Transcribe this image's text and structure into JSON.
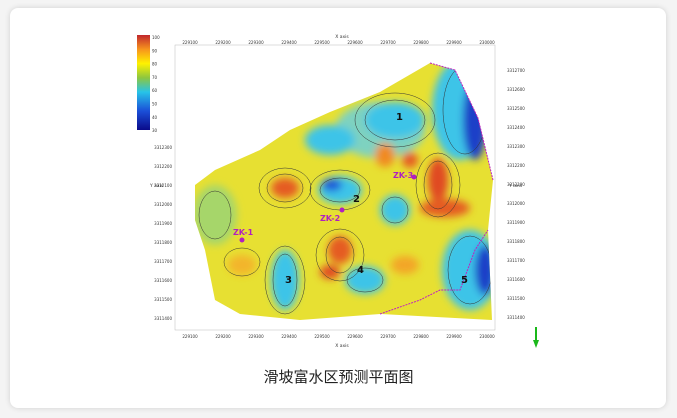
{
  "caption": "滑坡富水区预测平面图",
  "map": {
    "x_axis_title": "X axis",
    "y_axis_title": "Y axis",
    "x_ticks": [
      229100,
      229200,
      229300,
      229400,
      229500,
      229600,
      229700,
      229800,
      229900,
      230000
    ],
    "y_ticks_left": [
      3312300,
      3312200,
      3312100,
      3312000,
      3311900,
      3311800,
      3311700,
      3311600,
      3311500,
      3311400
    ],
    "y_ticks_right": [
      3312700,
      3312600,
      3312500,
      3312400,
      3312300,
      3312200,
      3312100,
      3312000,
      3311900,
      3311800,
      3311700,
      3311600,
      3311500,
      3311400
    ],
    "colorbar_ticks": [
      100,
      90,
      80,
      70,
      60,
      50,
      40,
      30
    ],
    "boreholes": [
      "ZK-1",
      "ZK-2",
      "ZK-3"
    ],
    "zones": [
      "1",
      "2",
      "3",
      "4",
      "5"
    ]
  }
}
